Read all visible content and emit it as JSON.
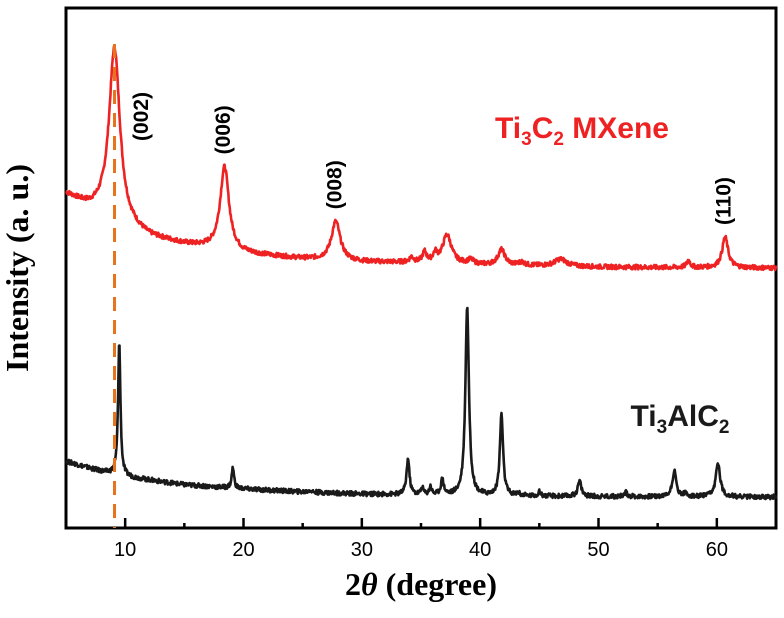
{
  "chart_data": {
    "type": "line",
    "xlabel_main": "2",
    "xlabel_theta": "θ",
    "xlabel_unit": "(degree)",
    "ylabel": "Intensity (a. u.)",
    "xlim": [
      5,
      65
    ],
    "xticks": [
      10,
      20,
      30,
      40,
      50,
      60
    ],
    "grid": false,
    "reference_line": {
      "x": 9.1,
      "color": "#e8731e",
      "style": "dashed"
    },
    "series": [
      {
        "label_parts": {
          "a": "Ti",
          "s1": "3",
          "b": "C",
          "s2": "2",
          "c": " MXene"
        },
        "color": "#ee2222",
        "baseline": [
          [
            5,
            0.72
          ],
          [
            7,
            0.58
          ],
          [
            8,
            0.54
          ],
          [
            10,
            0.4
          ],
          [
            12,
            0.3
          ],
          [
            15,
            0.23
          ],
          [
            20,
            0.14
          ],
          [
            25,
            0.09
          ],
          [
            30,
            0.06
          ],
          [
            35,
            0.05
          ],
          [
            40,
            0.03
          ],
          [
            45,
            0.02
          ],
          [
            50,
            0.01
          ],
          [
            55,
            0.005
          ],
          [
            60,
            0.003
          ],
          [
            65,
            0.0
          ]
        ],
        "peaks": [
          {
            "x": 9.1,
            "height": 1.7,
            "width": 0.55,
            "label": "(002)"
          },
          {
            "x": 18.4,
            "height": 0.82,
            "width": 0.45,
            "label": "(006)"
          },
          {
            "x": 27.8,
            "height": 0.38,
            "width": 0.45,
            "label": "(008)"
          },
          {
            "x": 34.2,
            "height": 0.05,
            "width": 0.2
          },
          {
            "x": 35.3,
            "height": 0.1,
            "width": 0.2
          },
          {
            "x": 36.2,
            "height": 0.08,
            "width": 0.2
          },
          {
            "x": 37.2,
            "height": 0.28,
            "width": 0.45
          },
          {
            "x": 39.2,
            "height": 0.04,
            "width": 0.3
          },
          {
            "x": 41.8,
            "height": 0.15,
            "width": 0.35
          },
          {
            "x": 43.5,
            "height": 0.03,
            "width": 0.3
          },
          {
            "x": 46.8,
            "height": 0.07,
            "width": 0.6
          },
          {
            "x": 57.6,
            "height": 0.07,
            "width": 0.18
          },
          {
            "x": 60.7,
            "height": 0.3,
            "width": 0.3,
            "label": "(110)"
          }
        ]
      },
      {
        "label_parts": {
          "a": "Ti",
          "s1": "3",
          "b": "AlC",
          "s2": "2",
          "c": ""
        },
        "color": "#1a1a1a",
        "baseline": [
          [
            5,
            0.35
          ],
          [
            8,
            0.25
          ],
          [
            10,
            0.2
          ],
          [
            15,
            0.12
          ],
          [
            20,
            0.08
          ],
          [
            25,
            0.05
          ],
          [
            30,
            0.03
          ],
          [
            35,
            0.02
          ],
          [
            40,
            0.01
          ],
          [
            50,
            0.005
          ],
          [
            65,
            0.0
          ]
        ],
        "peaks": [
          {
            "x": 9.5,
            "height": 1.3,
            "width": 0.12
          },
          {
            "x": 19.1,
            "height": 0.2,
            "width": 0.12
          },
          {
            "x": 25.6,
            "height": 0.02,
            "width": 0.15
          },
          {
            "x": 33.9,
            "height": 0.35,
            "width": 0.15
          },
          {
            "x": 35.1,
            "height": 0.07,
            "width": 0.12
          },
          {
            "x": 35.8,
            "height": 0.08,
            "width": 0.12
          },
          {
            "x": 36.8,
            "height": 0.15,
            "width": 0.15
          },
          {
            "x": 38.9,
            "height": 1.85,
            "width": 0.18
          },
          {
            "x": 41.8,
            "height": 0.8,
            "width": 0.16
          },
          {
            "x": 43.2,
            "height": 0.03,
            "width": 0.15
          },
          {
            "x": 45.0,
            "height": 0.04,
            "width": 0.15
          },
          {
            "x": 48.4,
            "height": 0.15,
            "width": 0.18
          },
          {
            "x": 52.3,
            "height": 0.04,
            "width": 0.15
          },
          {
            "x": 56.4,
            "height": 0.25,
            "width": 0.2
          },
          {
            "x": 57.3,
            "height": 0.03,
            "width": 0.15
          },
          {
            "x": 60.1,
            "height": 0.33,
            "width": 0.22
          }
        ]
      }
    ]
  }
}
